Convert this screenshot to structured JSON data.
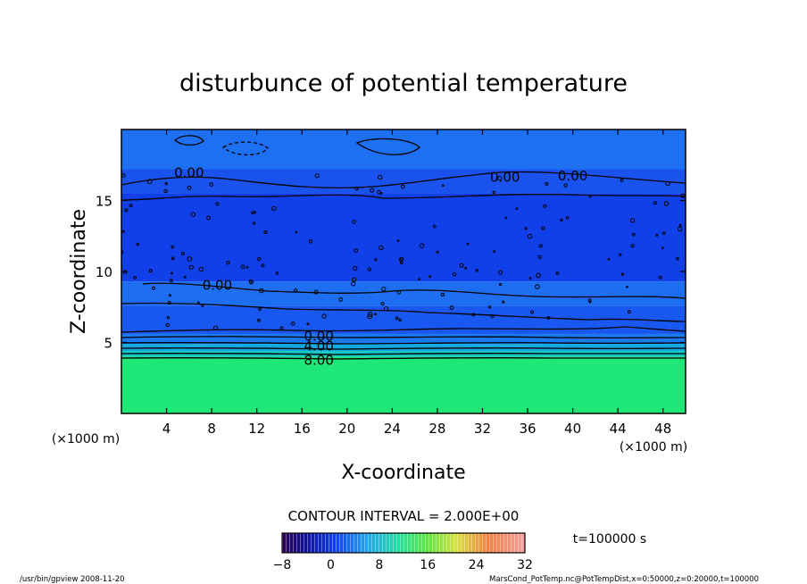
{
  "chart_data": {
    "type": "heatmap",
    "title": "disturbunce of potential temperature",
    "xlabel": "X-coordinate",
    "ylabel": "Z-coordinate",
    "x_unit_label": "(×1000 m)",
    "z_unit_label": "(×1000 m)",
    "xlim": [
      0,
      50
    ],
    "ylim": [
      0,
      20
    ],
    "x_ticks": [
      4,
      8,
      12,
      16,
      20,
      24,
      28,
      32,
      36,
      40,
      44,
      48
    ],
    "y_ticks": [
      5,
      10,
      15
    ],
    "x_tick_labels": [
      "4",
      "8",
      "12",
      "16",
      "20",
      "24",
      "28",
      "32",
      "36",
      "40",
      "44",
      "48"
    ],
    "y_tick_labels": [
      "5",
      "10",
      "15"
    ],
    "contour_interval_text": "CONTOUR INTERVAL = 2.000E+00",
    "contour_levels_labeled": [
      {
        "label": "0.00",
        "x": 6.0,
        "z": 17.0
      },
      {
        "label": "0.00",
        "x": 34.0,
        "z": 16.7
      },
      {
        "label": "0.00",
        "x": 40.0,
        "z": 16.8
      },
      {
        "label": "0.00",
        "x": 8.5,
        "z": 9.1
      },
      {
        "label": "0.00",
        "x": 17.5,
        "z": 5.5
      },
      {
        "label": "4.00",
        "x": 17.5,
        "z": 4.8
      },
      {
        "label": "8.00",
        "x": 17.5,
        "z": 3.8
      }
    ],
    "field_bands": [
      {
        "z_min": 0,
        "z_max": 4.0,
        "value": 10,
        "color": "#1fe878"
      },
      {
        "z_min": 4.0,
        "z_max": 4.4,
        "value": 6,
        "color": "#15c8c8"
      },
      {
        "z_min": 4.4,
        "z_max": 4.9,
        "value": 3,
        "color": "#12a8e0"
      },
      {
        "z_min": 4.9,
        "z_max": 5.6,
        "value": 1,
        "color": "#1a78f0"
      },
      {
        "z_min": 5.6,
        "z_max": 7.6,
        "value": -1,
        "color": "#1858f0"
      },
      {
        "z_min": 7.6,
        "z_max": 9.3,
        "value": -0.5,
        "color": "#1e6ef2"
      },
      {
        "z_min": 9.3,
        "z_max": 15.5,
        "value": -2,
        "color": "#1240e8"
      },
      {
        "z_min": 15.5,
        "z_max": 17.2,
        "value": -1,
        "color": "#1a52ee"
      },
      {
        "z_min": 17.2,
        "z_max": 20,
        "value": 0,
        "color": "#1e70f2"
      }
    ],
    "colorbar": {
      "min": -8,
      "max": 32,
      "tick_values": [
        -8,
        0,
        8,
        16,
        24,
        32
      ],
      "tick_labels": [
        "−8",
        "0",
        "8",
        "16",
        "24",
        "32"
      ]
    },
    "time_label": "t=100000 s",
    "grid": false
  },
  "footer": {
    "left": "/usr/bin/gpview   2008-11-20",
    "right": "MarsCond_PotTemp.nc@PotTempDist,x=0:50000,z=0:20000,t=100000"
  }
}
